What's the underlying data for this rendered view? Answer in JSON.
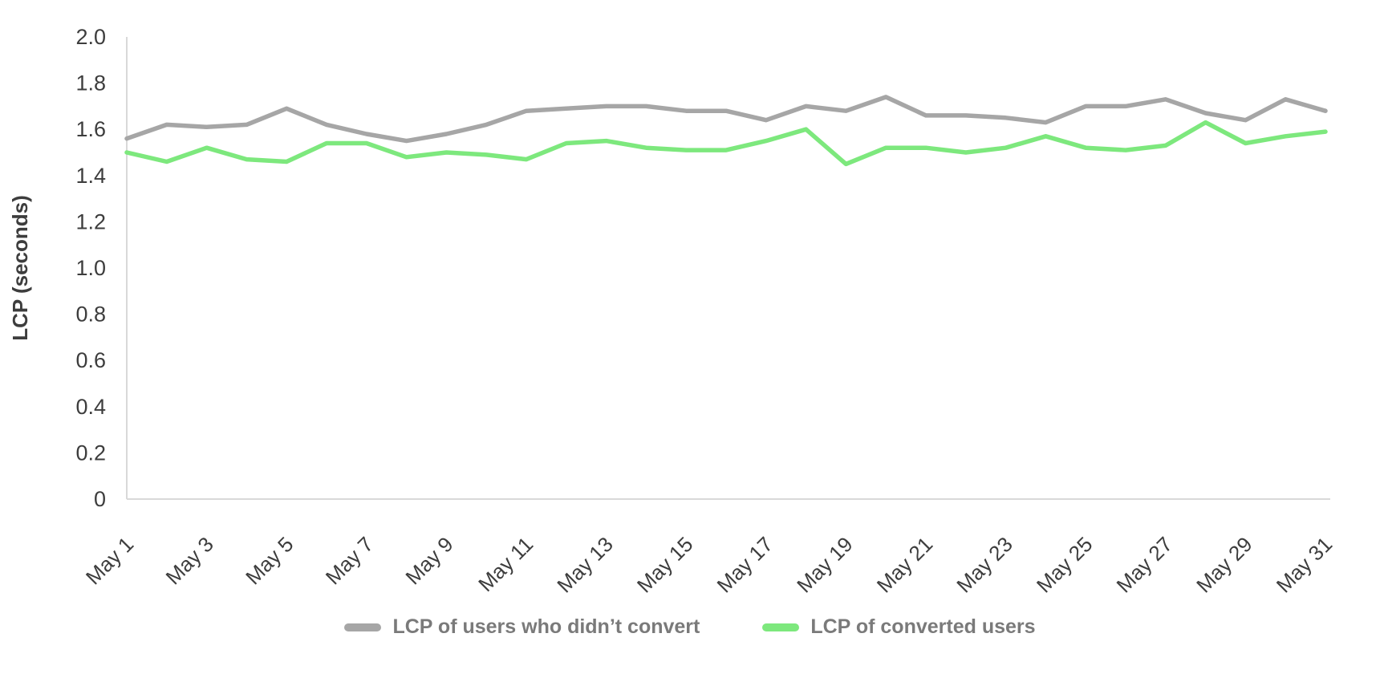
{
  "chart_data": {
    "type": "line",
    "title": "",
    "xlabel": "",
    "ylabel": "LCP (seconds)",
    "ylim": [
      0,
      2
    ],
    "y_ticks": [
      0,
      0.2,
      0.4,
      0.6,
      0.8,
      1.0,
      1.2,
      1.4,
      1.6,
      1.8,
      2.0
    ],
    "y_tick_labels": [
      "0",
      "0.2",
      "0.4",
      "0.6",
      "0.8",
      "1.0",
      "1.2",
      "1.4",
      "1.6",
      "1.8",
      "2.0"
    ],
    "categories": [
      "May 1",
      "May 2",
      "May 3",
      "May 4",
      "May 5",
      "May 6",
      "May 7",
      "May 8",
      "May 9",
      "May 10",
      "May 11",
      "May 12",
      "May 13",
      "May 14",
      "May 15",
      "May 16",
      "May 17",
      "May 18",
      "May 19",
      "May 20",
      "May 21",
      "May 22",
      "May 23",
      "May 24",
      "May 25",
      "May 26",
      "May 27",
      "May 28",
      "May 29",
      "May 30",
      "May 31"
    ],
    "x_label_every": 2,
    "x_tick_labels_shown": [
      "May 1",
      "May 3",
      "May 5",
      "May 7",
      "May 9",
      "May 11",
      "May 13",
      "May 15",
      "May 17",
      "May 19",
      "May 21",
      "May 23",
      "May 25",
      "May 27",
      "May 29",
      "May 31"
    ],
    "grid": false,
    "legend_position": "bottom",
    "axis_color": "#d9d9d9",
    "tick_text_color": "#3d3d3d",
    "legend_text_color": "#7a7a7a",
    "series": [
      {
        "id": "non-converted-users",
        "name": "LCP of users who didn’t convert",
        "color": "#a6a6a6",
        "values": [
          1.56,
          1.62,
          1.61,
          1.62,
          1.69,
          1.62,
          1.58,
          1.55,
          1.58,
          1.62,
          1.68,
          1.69,
          1.7,
          1.7,
          1.68,
          1.68,
          1.64,
          1.7,
          1.68,
          1.74,
          1.66,
          1.66,
          1.65,
          1.63,
          1.7,
          1.7,
          1.73,
          1.67,
          1.64,
          1.73,
          1.68
        ]
      },
      {
        "id": "converted-users",
        "name": "LCP of converted users",
        "color": "#7de87d",
        "values": [
          1.5,
          1.46,
          1.52,
          1.47,
          1.46,
          1.54,
          1.54,
          1.48,
          1.5,
          1.49,
          1.47,
          1.54,
          1.55,
          1.52,
          1.51,
          1.51,
          1.55,
          1.6,
          1.45,
          1.52,
          1.52,
          1.5,
          1.52,
          1.57,
          1.52,
          1.51,
          1.53,
          1.63,
          1.54,
          1.57,
          1.59
        ]
      }
    ]
  }
}
